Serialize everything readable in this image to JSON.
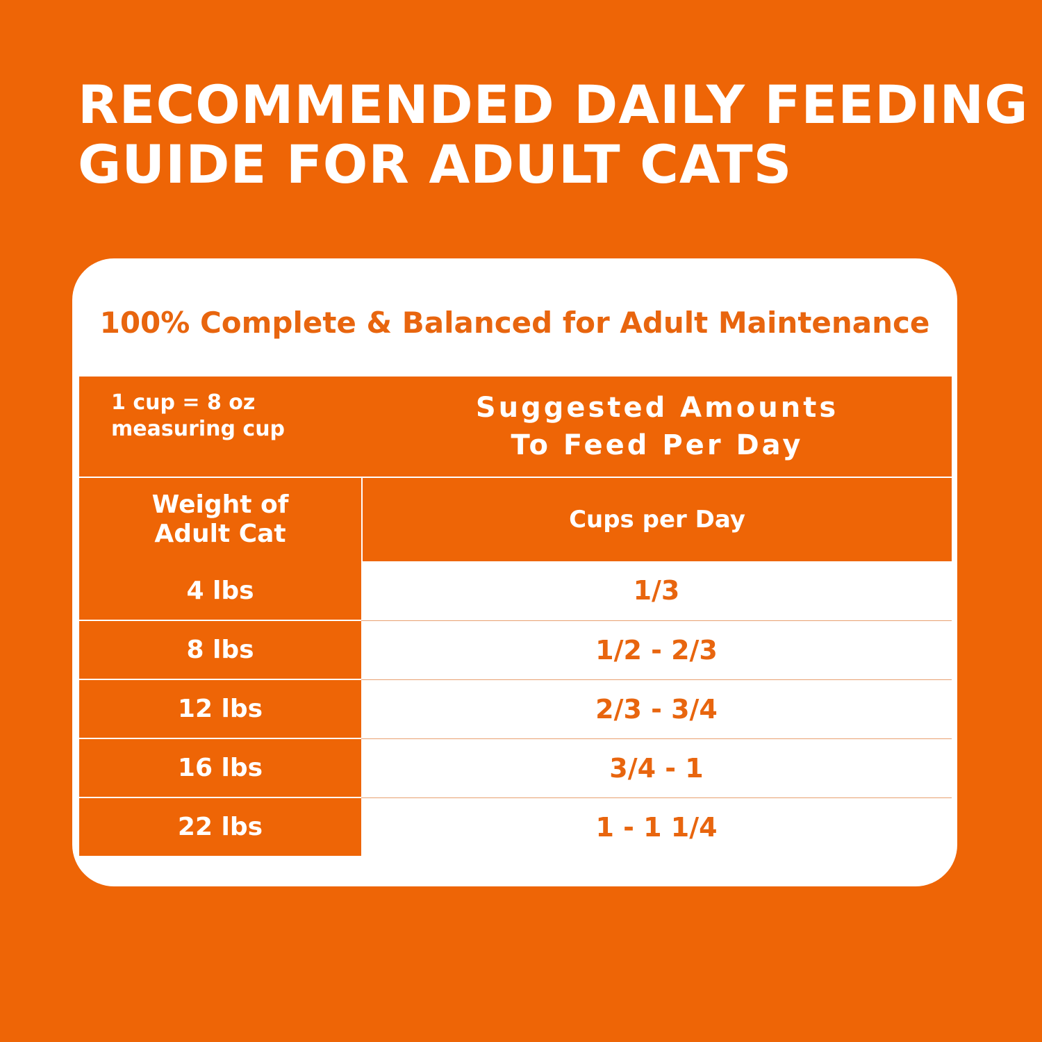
{
  "header": {
    "title_lines": [
      "RECOMMENDED DAILY FEEDING",
      "GUIDE FOR ADULT CATS"
    ]
  },
  "card": {
    "subtitle": "100% Complete & Balanced for Adult Maintenance"
  },
  "table": {
    "note_lines": [
      "1 cup = 8 oz",
      "measuring cup"
    ],
    "group_header_lines": [
      "Suggested Amounts",
      "To Feed Per Day"
    ],
    "column_headers": [
      [
        "Weight of",
        "Adult Cat"
      ],
      [
        "Cups per Day"
      ]
    ],
    "rows": [
      [
        "4 lbs",
        "1/3"
      ],
      [
        "8 lbs",
        "1/2 - 2/3"
      ],
      [
        "12 lbs",
        "2/3 - 3/4"
      ],
      [
        "16 lbs",
        "3/4 - 1"
      ],
      [
        "22 lbs",
        "1 - 1 1/4"
      ]
    ]
  }
}
